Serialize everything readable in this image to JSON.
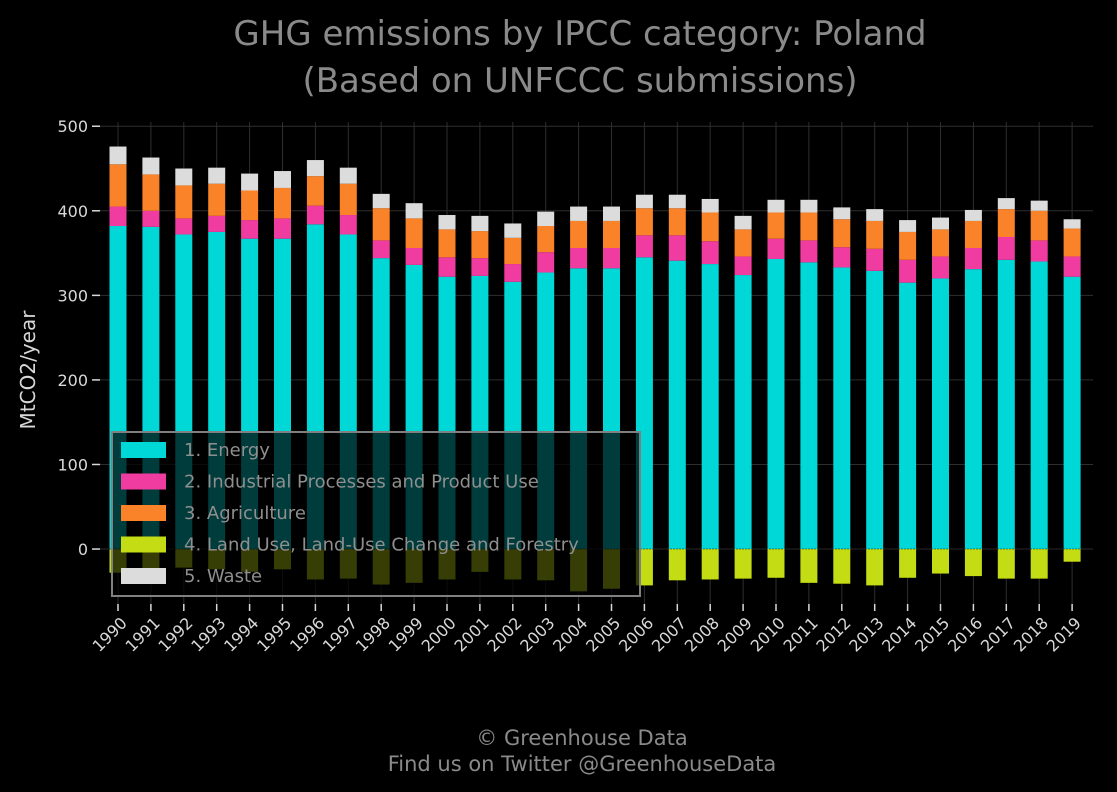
{
  "title_line1": "GHG emissions by IPCC category: Poland",
  "title_line2": "(Based on UNFCCC submissions)",
  "credit_line1": "© Greenhouse Data",
  "credit_line2": "Find us on Twitter @GreenhouseData",
  "colors": {
    "background": "#000000",
    "energy": "#00d8d8",
    "ippu": "#f03ca0",
    "agriculture": "#fa8228",
    "lulucf": "#c3dc14",
    "waste": "#dcdcdc",
    "grid": "#2e2e2e",
    "legend_border": "#808080"
  },
  "chart_data": {
    "type": "bar",
    "stacked": true,
    "title": "GHG emissions by IPCC category: Poland (Based on UNFCCC submissions)",
    "ylabel": "MtCO2/year",
    "xlabel": "",
    "ylim": [
      -65,
      505
    ],
    "yticks": [
      0,
      100,
      200,
      300,
      400,
      500
    ],
    "grid": true,
    "legend_position": "lower-left",
    "categories": [
      "1990",
      "1991",
      "1992",
      "1993",
      "1994",
      "1995",
      "1996",
      "1997",
      "1998",
      "1999",
      "2000",
      "2001",
      "2002",
      "2003",
      "2004",
      "2005",
      "2006",
      "2007",
      "2008",
      "2009",
      "2010",
      "2011",
      "2012",
      "2013",
      "2014",
      "2015",
      "2016",
      "2017",
      "2018",
      "2019"
    ],
    "series": [
      {
        "name": "1. Energy",
        "color_key": "energy",
        "values": [
          382,
          381,
          372,
          375,
          367,
          367,
          384,
          372,
          344,
          336,
          322,
          323,
          316,
          327,
          332,
          332,
          345,
          341,
          337,
          324,
          343,
          339,
          333,
          329,
          315,
          320,
          331,
          342,
          340,
          322
        ]
      },
      {
        "name": "2. Industrial Processes and Product Use",
        "color_key": "ippu",
        "values": [
          23,
          19,
          19,
          19,
          22,
          24,
          22,
          23,
          21,
          20,
          23,
          21,
          21,
          24,
          24,
          24,
          26,
          30,
          27,
          22,
          24,
          26,
          24,
          26,
          27,
          26,
          25,
          27,
          25,
          24
        ]
      },
      {
        "name": "3. Agriculture",
        "color_key": "agriculture",
        "values": [
          50,
          43,
          39,
          38,
          35,
          36,
          35,
          37,
          38,
          35,
          33,
          32,
          31,
          31,
          32,
          32,
          32,
          32,
          34,
          32,
          31,
          33,
          33,
          33,
          33,
          32,
          32,
          33,
          35,
          33
        ]
      },
      {
        "name": "4. Land Use, Land-Use Change and Forestry",
        "color_key": "lulucf",
        "values": [
          -28,
          -24,
          -22,
          -24,
          -27,
          -24,
          -36,
          -35,
          -42,
          -40,
          -36,
          -27,
          -36,
          -37,
          -50,
          -47,
          -43,
          -37,
          -36,
          -35,
          -34,
          -40,
          -41,
          -43,
          -34,
          -29,
          -32,
          -35,
          -35,
          -15
        ]
      },
      {
        "name": "5. Waste",
        "color_key": "waste",
        "values": [
          21,
          20,
          20,
          19,
          20,
          20,
          19,
          19,
          17,
          18,
          17,
          18,
          17,
          17,
          17,
          17,
          16,
          16,
          16,
          16,
          15,
          15,
          14,
          14,
          14,
          14,
          13,
          13,
          12,
          11
        ]
      }
    ]
  }
}
